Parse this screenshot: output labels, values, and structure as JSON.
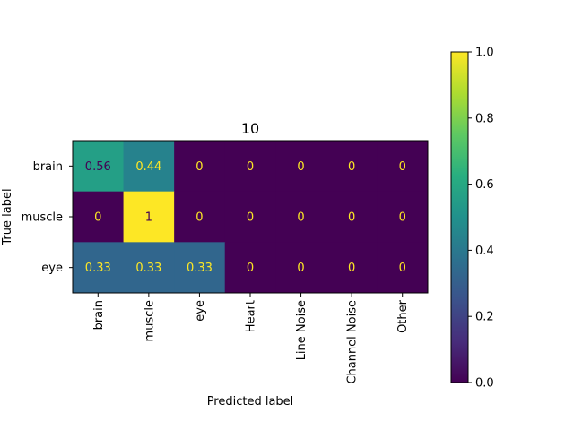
{
  "chart_data": {
    "type": "heatmap",
    "title": "10",
    "xlabel": "Predicted label",
    "ylabel": "True label",
    "x_categories": [
      "brain",
      "muscle",
      "eye",
      "Heart",
      "Line Noise",
      "Channel Noise",
      "Other"
    ],
    "y_categories": [
      "brain",
      "muscle",
      "eye"
    ],
    "values": [
      [
        0.56,
        0.44,
        0,
        0,
        0,
        0,
        0
      ],
      [
        0,
        1,
        0,
        0,
        0,
        0,
        0
      ],
      [
        0.33,
        0.33,
        0.33,
        0,
        0,
        0,
        0
      ]
    ],
    "value_labels": [
      [
        "0.56",
        "0.44",
        "0",
        "0",
        "0",
        "0",
        "0"
      ],
      [
        "0",
        "1",
        "0",
        "0",
        "0",
        "0",
        "0"
      ],
      [
        "0.33",
        "0.33",
        "0.33",
        "0",
        "0",
        "0",
        "0"
      ]
    ],
    "colormap": "viridis",
    "colorbar": {
      "range": [
        0.0,
        1.0
      ],
      "ticks": [
        0.0,
        0.2,
        0.4,
        0.6,
        0.8,
        1.0
      ],
      "tick_labels": [
        "0.0",
        "0.2",
        "0.4",
        "0.6",
        "0.8",
        "1.0"
      ]
    },
    "text_color_dark_cells": "#fde725",
    "text_color_light_cells": "#440154",
    "grid": false
  }
}
